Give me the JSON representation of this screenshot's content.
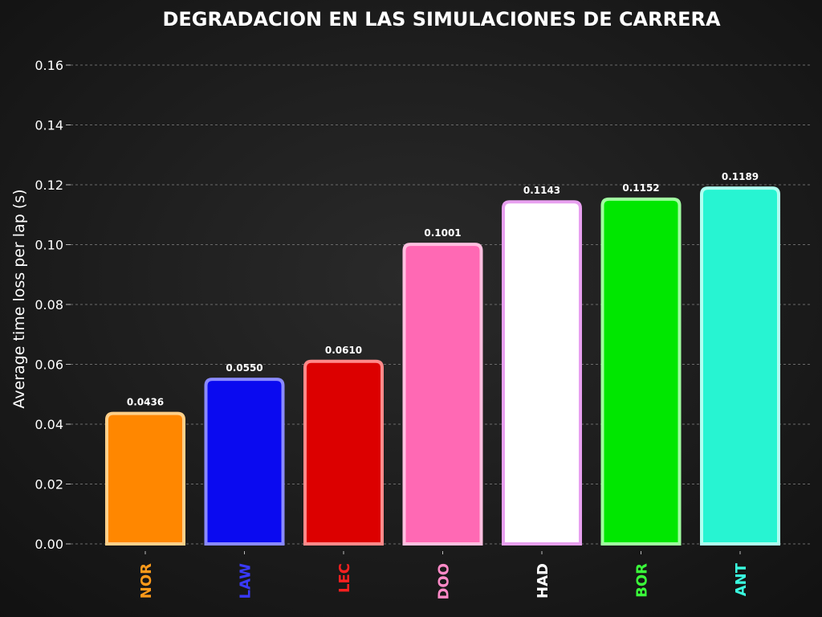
{
  "chart_data": {
    "type": "bar",
    "title": "DEGRADACION EN LAS SIMULACIONES DE CARRERA",
    "xlabel": "",
    "ylabel": "Average time loss per lap (s)",
    "ylim": [
      0,
      0.165
    ],
    "yticks": [
      "0.00",
      "0.02",
      "0.04",
      "0.06",
      "0.08",
      "0.10",
      "0.12",
      "0.14",
      "0.16"
    ],
    "grid": "horizontal dashed",
    "categories": [
      "NOR",
      "LAW",
      "LEC",
      "DOO",
      "HAD",
      "BOR",
      "ANT"
    ],
    "values": [
      0.0436,
      0.055,
      0.061,
      0.1001,
      0.1143,
      0.1152,
      0.1189
    ],
    "data_labels": [
      "0.0436",
      "0.0550",
      "0.0610",
      "0.1001",
      "0.1143",
      "0.1152",
      "0.1189"
    ],
    "fill_colors": [
      "#ff8700",
      "#0a0af0",
      "#dc0000",
      "#ff69b4",
      "#ffffff",
      "#00e700",
      "#27f4d2"
    ],
    "edge_colors": [
      "#ffd08a",
      "#8a8aff",
      "#ff8a8a",
      "#ffc0e0",
      "#e8a0f0",
      "#a0ffa0",
      "#b0fff0"
    ],
    "label_colors": [
      "#ff9a1a",
      "#3a3aff",
      "#ff2020",
      "#ff8ac8",
      "#ffffff",
      "#3aff3a",
      "#3affe0"
    ]
  }
}
